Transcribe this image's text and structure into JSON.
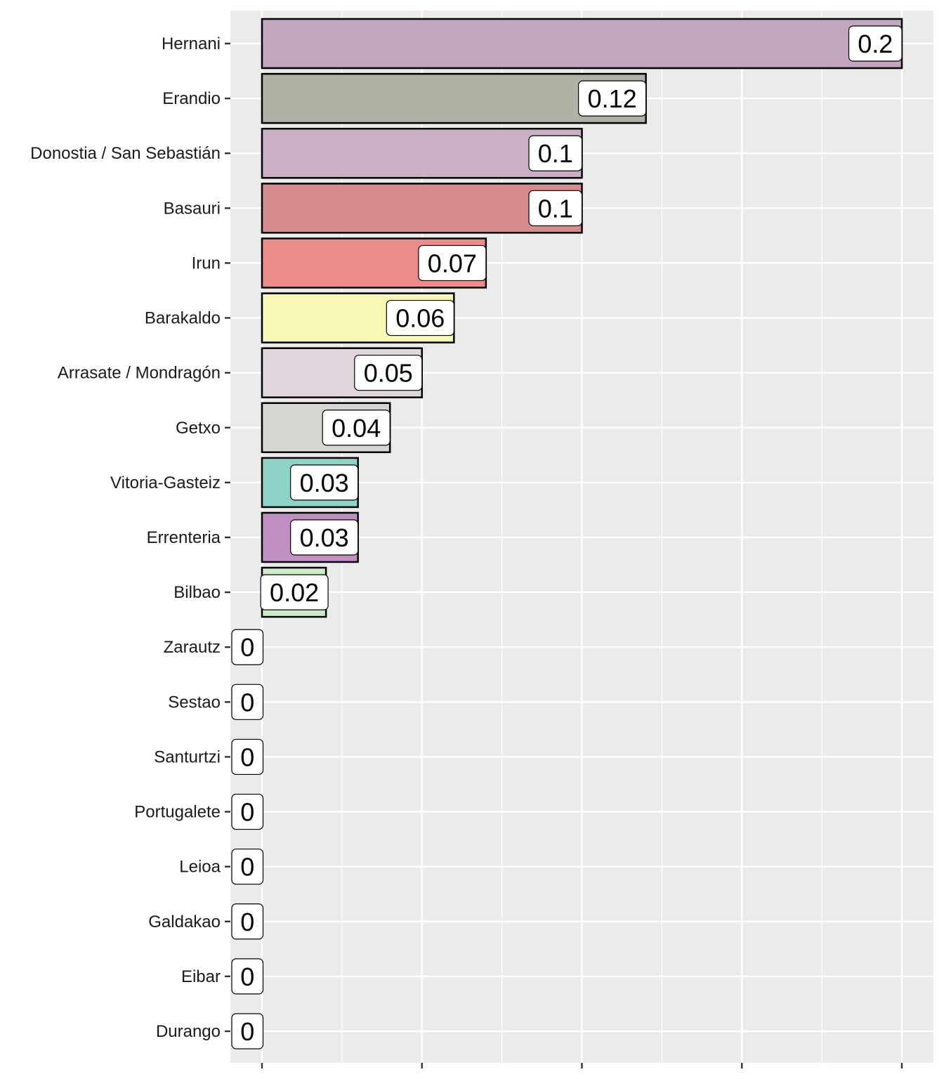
{
  "chart_data": {
    "type": "bar",
    "orientation": "horizontal",
    "title": "",
    "xlabel": "",
    "ylabel": "",
    "xlim": [
      0,
      0.2
    ],
    "x_ticks": [
      0,
      0.05,
      0.1,
      0.15,
      0.2
    ],
    "x_tick_labels_visible": false,
    "grid": true,
    "legend": "none",
    "categories": [
      "Hernani",
      "Erandio",
      "Donostia / San Sebastián",
      "Basauri",
      "Irun",
      "Barakaldo",
      "Arrasate / Mondragón",
      "Getxo",
      "Vitoria-Gasteiz",
      "Errenteria",
      "Bilbao",
      "Zarautz",
      "Sestao",
      "Santurtzi",
      "Portugalete",
      "Leioa",
      "Galdakao",
      "Eibar",
      "Durango"
    ],
    "values": [
      0.2,
      0.12,
      0.1,
      0.1,
      0.07,
      0.06,
      0.05,
      0.04,
      0.03,
      0.03,
      0.02,
      0,
      0,
      0,
      0,
      0,
      0,
      0,
      0
    ],
    "labels": [
      "0.2",
      "0.12",
      "0.1",
      "0.1",
      "0.07",
      "0.06",
      "0.05",
      "0.04",
      "0.03",
      "0.03",
      "0.02",
      "0",
      "0",
      "0",
      "0",
      "0",
      "0",
      "0",
      "0"
    ],
    "colors": [
      "#C2A5BF",
      "#B1B2A5",
      "#CBAFC6",
      "#D68C8C",
      "#EB8C8A",
      "#F7F7B6",
      "#E1D6DE",
      "#D5D5D1",
      "#8DD3C7",
      "#C28FC2",
      "#CCEBC5",
      "#BEBADA",
      "#FDB462",
      "#80B1D3",
      "#FB8072",
      "#B3DE69",
      "#FCCDE5",
      "#BC80BD",
      "#FFED6F"
    ]
  }
}
